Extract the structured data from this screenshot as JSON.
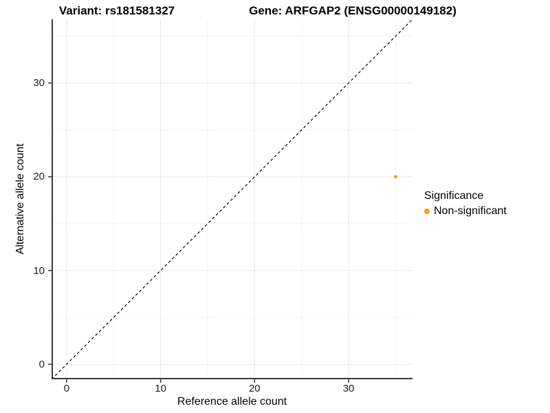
{
  "figure": {
    "title_left": "Variant: rs181581327",
    "title_right": "Gene: ARFGAP2 (ENSG00000149182)"
  },
  "axes": {
    "x": {
      "label": "Reference allele count",
      "tick_labels": [
        "0",
        "10",
        "20",
        "30"
      ]
    },
    "y": {
      "label": "Alternative allele count",
      "tick_labels": [
        "0",
        "10",
        "20",
        "30"
      ]
    }
  },
  "legend": {
    "title": "Significance",
    "items": [
      {
        "label": "Non-significant",
        "color": "#F9A01B"
      }
    ]
  },
  "colors": {
    "point_orange": "#F9A01B",
    "axis_line": "#383838",
    "grid_major": "#E8E8E8",
    "grid_minor": "#F4F4F4",
    "identity_line": "#000000",
    "tick_text": "#1c1c1c",
    "background": "#FFFFFF"
  },
  "chart_data": {
    "type": "scatter",
    "title_left": "Variant: rs181581327",
    "title_right": "Gene: ARFGAP2 (ENSG00000149182)",
    "xlabel": "Reference allele count",
    "ylabel": "Alternative allele count",
    "xlim": [
      -1.6,
      36.8
    ],
    "ylim": [
      -1.6,
      36.8
    ],
    "major_ticks": [
      0,
      10,
      20,
      30
    ],
    "minor_gridlines": [
      5,
      15,
      25,
      35
    ],
    "grid": true,
    "legend_position": "right",
    "identity_line": {
      "equation": "y = x",
      "style": "dashed",
      "color": "#000000"
    },
    "series": [
      {
        "name": "Non-significant",
        "color": "#F9A01B",
        "points": [
          {
            "x": 35,
            "y": 20
          }
        ],
        "point_radius": 2.5
      }
    ]
  }
}
